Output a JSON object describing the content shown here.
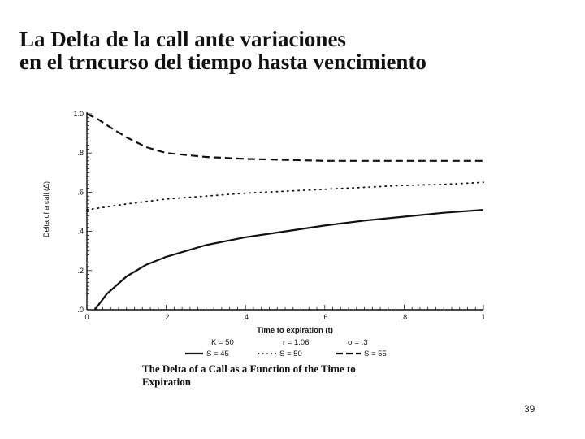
{
  "slide": {
    "title_line1": "La Delta de la call ante variaciones",
    "title_line2": "en el trncurso del tiempo hasta vencimiento",
    "page_number": "39"
  },
  "chart_data": {
    "type": "line",
    "title": "",
    "xlabel": "Time to expiration (t)",
    "ylabel": "Delta of a call (Δ)",
    "xlim": [
      0,
      1
    ],
    "ylim": [
      0,
      1
    ],
    "x_tick_labels": [
      "0",
      ".2",
      ".4",
      ".6",
      ".8",
      "1"
    ],
    "y_tick_labels": [
      ".0",
      ".2",
      ".4",
      ".6",
      ".8",
      "1.0"
    ],
    "grid": false,
    "parameters": [
      "K = 50",
      "r = 1.06",
      "σ = .3"
    ],
    "series": [
      {
        "name": "S = 45",
        "style": "solid",
        "x": [
          0.02,
          0.05,
          0.1,
          0.15,
          0.2,
          0.3,
          0.4,
          0.5,
          0.6,
          0.7,
          0.8,
          0.9,
          1.0
        ],
        "y": [
          0.0,
          0.08,
          0.17,
          0.23,
          0.27,
          0.33,
          0.37,
          0.4,
          0.43,
          0.455,
          0.475,
          0.495,
          0.51
        ]
      },
      {
        "name": "S = 50",
        "style": "dotted",
        "x": [
          0.0,
          0.1,
          0.2,
          0.3,
          0.4,
          0.5,
          0.6,
          0.7,
          0.8,
          0.9,
          1.0
        ],
        "y": [
          0.51,
          0.54,
          0.565,
          0.58,
          0.595,
          0.605,
          0.615,
          0.625,
          0.635,
          0.64,
          0.65
        ]
      },
      {
        "name": "S = 55",
        "style": "dashed",
        "x": [
          0.0,
          0.03,
          0.06,
          0.1,
          0.15,
          0.2,
          0.3,
          0.4,
          0.5,
          0.6,
          0.7,
          0.8,
          0.9,
          1.0
        ],
        "y": [
          1.0,
          0.97,
          0.93,
          0.88,
          0.83,
          0.8,
          0.78,
          0.77,
          0.765,
          0.76,
          0.76,
          0.76,
          0.76,
          0.76
        ]
      }
    ],
    "caption_line1": "The Delta of a Call as a Function of the Time to",
    "caption_line2": "Expiration"
  }
}
